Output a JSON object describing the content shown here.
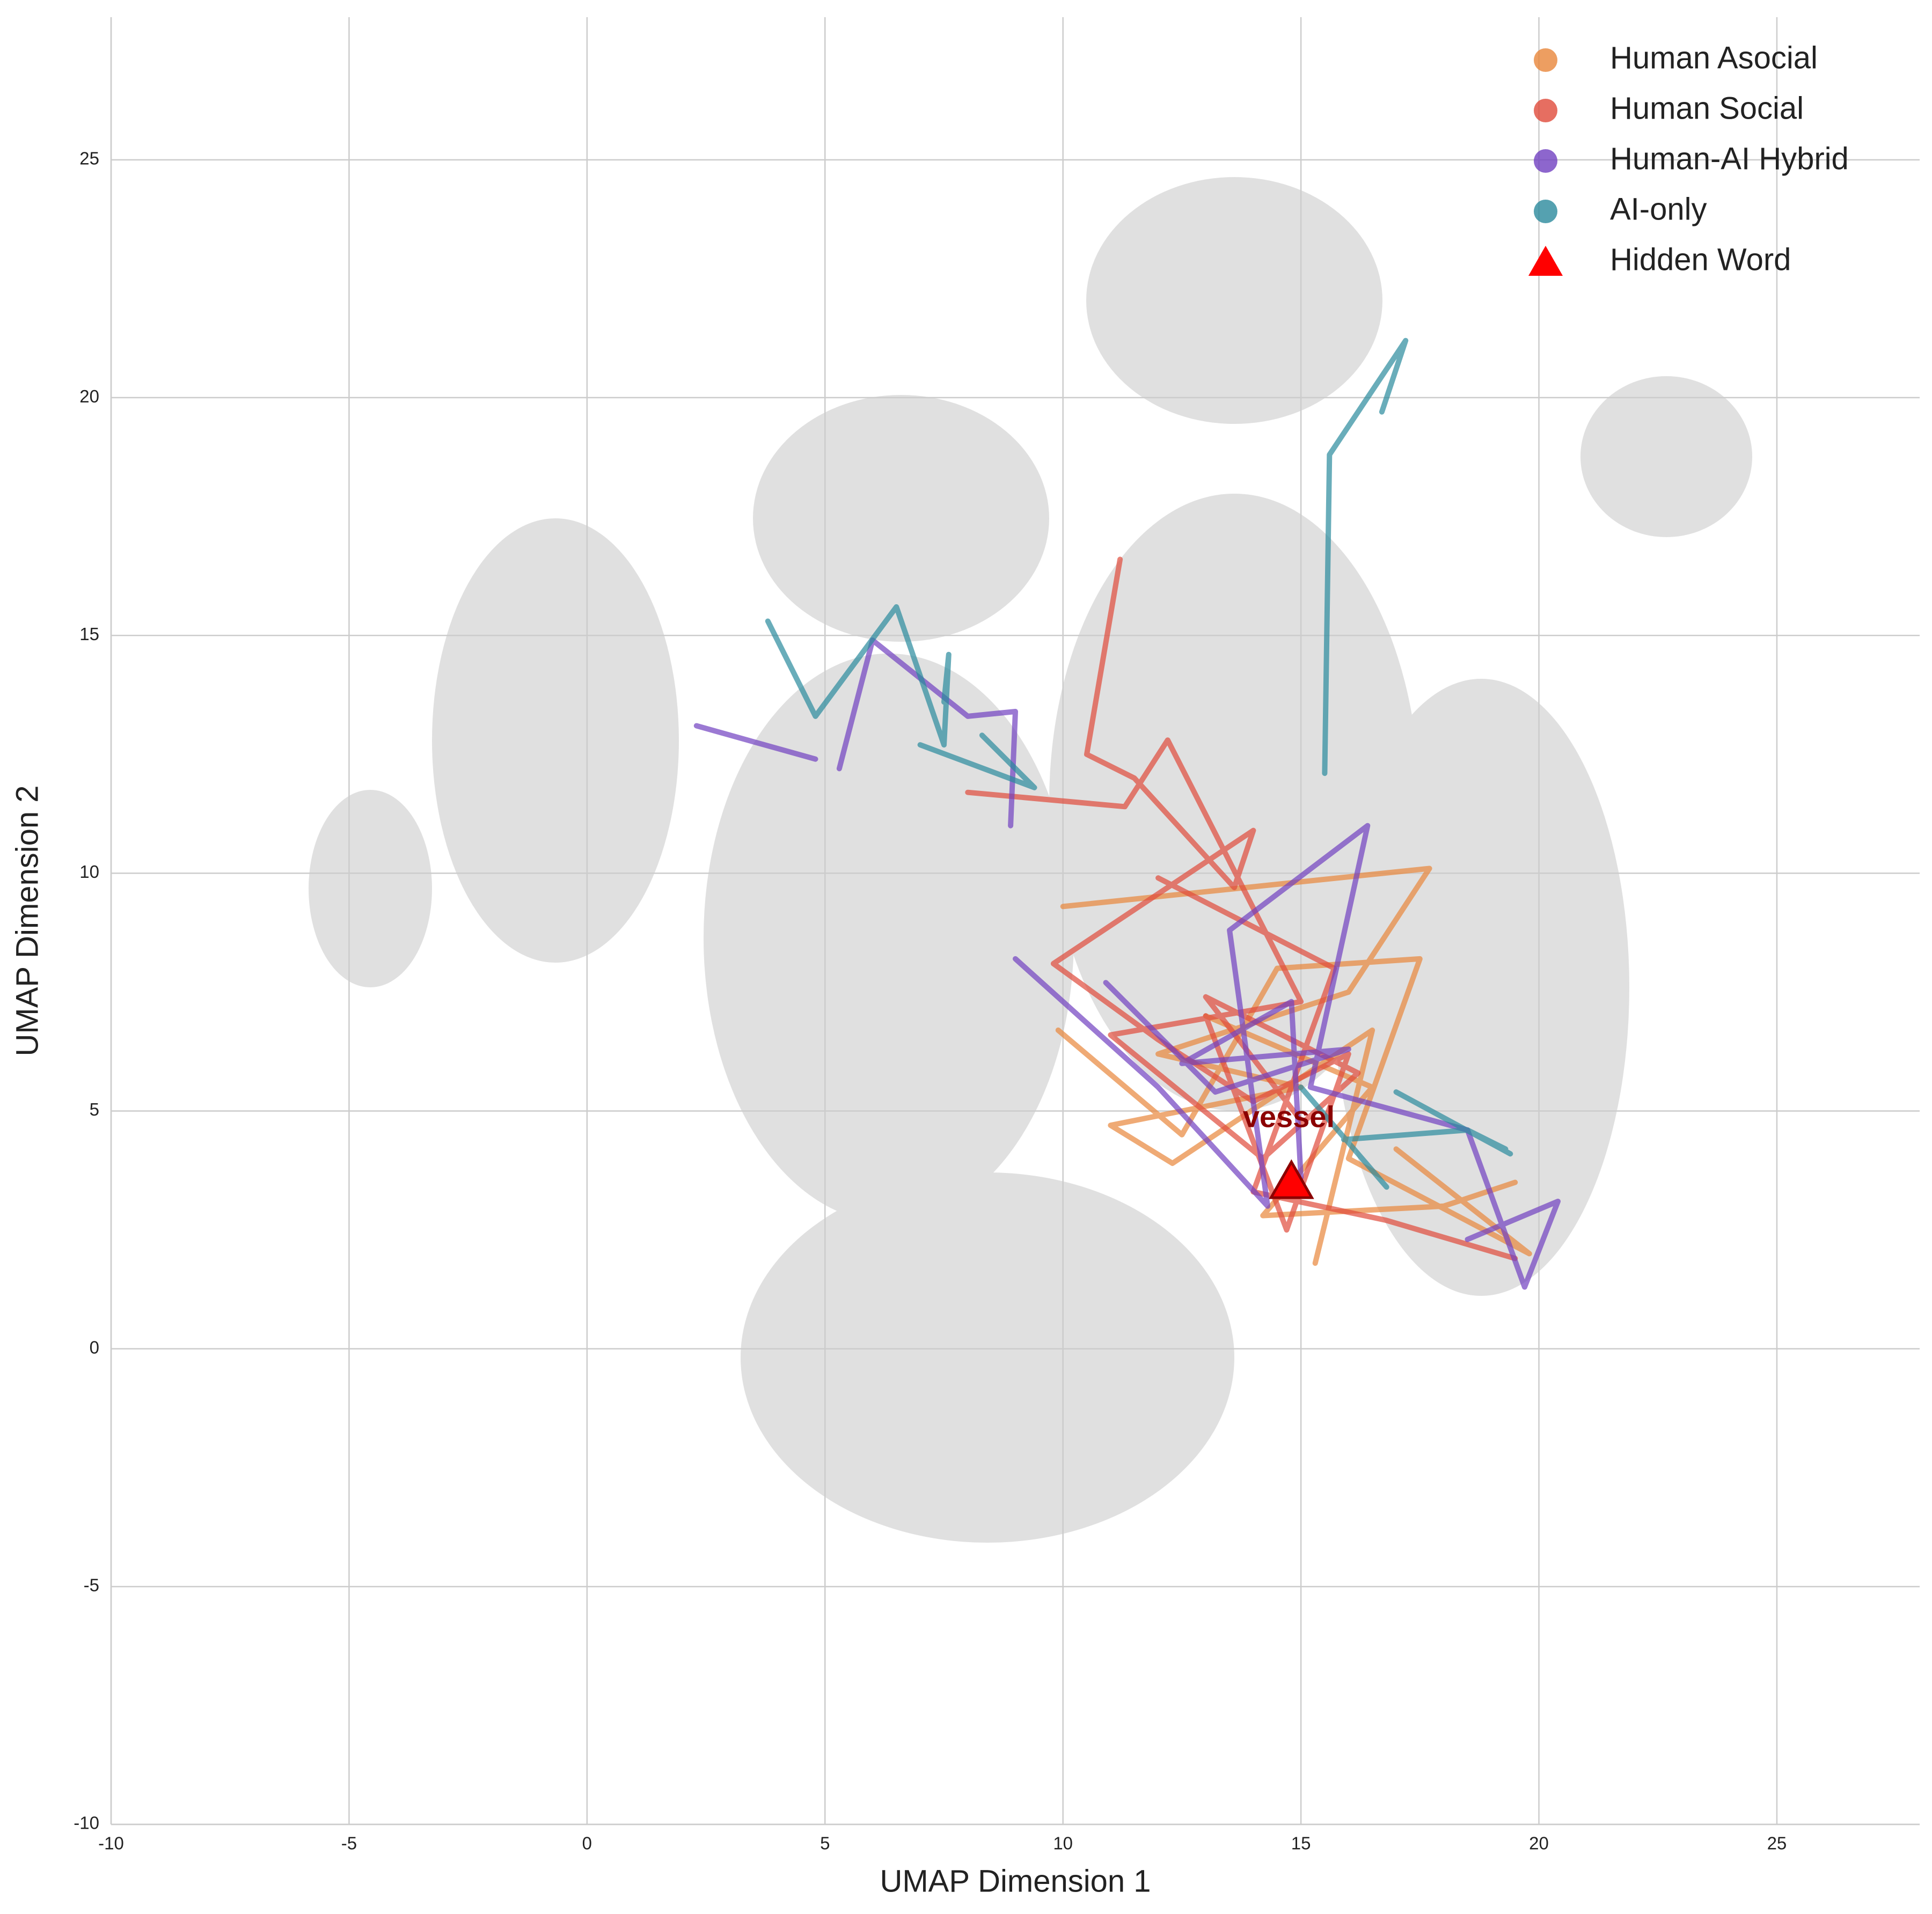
{
  "chart_data": {
    "type": "line",
    "x_label": "UMAP Dimension 1",
    "y_label": "UMAP Dimension 2",
    "xlim": [
      -10,
      28
    ],
    "ylim": [
      -10,
      28
    ],
    "xticks": [
      -10,
      -5,
      0,
      5,
      10,
      15,
      20,
      25
    ],
    "yticks": [
      -10,
      -5,
      0,
      5,
      10,
      15,
      20,
      25
    ],
    "grid": true,
    "legend": "upper right",
    "series": [
      {
        "name": "Human Asocial",
        "color": "#e8863a",
        "x": [
          10.0,
          17.7,
          16.0,
          12.0,
          15.0,
          11.0,
          12.3,
          16.5,
          15.3,
          null,
          9.9,
          12.5,
          14.5,
          17.5,
          16.0,
          19.8,
          17.0,
          null,
          13.0,
          16.5,
          14.2,
          18.0,
          19.5
        ],
        "y": [
          9.3,
          10.1,
          7.5,
          6.2,
          5.5,
          4.7,
          3.9,
          6.7,
          1.8,
          null,
          6.7,
          4.5,
          8.0,
          8.2,
          4.0,
          2.0,
          4.2,
          null,
          7.0,
          5.5,
          2.8,
          3.0,
          3.5
        ]
      },
      {
        "name": "Human Social",
        "color": "#e04a3a",
        "x": [
          11.2,
          10.5,
          11.5,
          13.6,
          14.0,
          9.8,
          12.0,
          14.0,
          16.0,
          14.7,
          13.0,
          null,
          8.0,
          11.3,
          12.2,
          15.0,
          11.0,
          14.2,
          16.2,
          13.0,
          15.0,
          null,
          12.0,
          15.7,
          14.0,
          16.8,
          19.5
        ],
        "y": [
          16.6,
          12.5,
          12.0,
          9.7,
          10.9,
          8.1,
          6.5,
          5.2,
          6.2,
          2.5,
          7.0,
          null,
          11.7,
          11.4,
          12.8,
          7.3,
          6.6,
          4.0,
          5.8,
          7.4,
          4.8,
          null,
          9.9,
          8.0,
          3.3,
          2.7,
          1.9
        ]
      },
      {
        "name": "Human-AI Hybrid",
        "color": "#7040c0",
        "x": [
          2.3,
          4.8,
          null,
          5.3,
          6.0,
          8.0,
          9.0,
          8.9,
          null,
          9.0,
          12.0,
          14.3,
          13.5,
          16.4,
          15.2,
          18.5,
          19.7,
          20.4,
          18.5,
          null,
          10.9,
          13.2,
          16.0,
          12.5,
          14.8,
          15.0
        ],
        "y": [
          13.1,
          12.4,
          null,
          12.2,
          14.9,
          13.3,
          13.4,
          11.0,
          null,
          8.2,
          5.5,
          3.0,
          8.8,
          11.0,
          5.5,
          4.6,
          1.3,
          3.1,
          2.3,
          null,
          7.7,
          5.4,
          6.3,
          6.0,
          7.3,
          3.6
        ]
      },
      {
        "name": "AI-only",
        "color": "#2a8a9c",
        "x": [
          3.8,
          4.8,
          6.5,
          7.5,
          7.6,
          7.5,
          null,
          7.0,
          9.4,
          8.3,
          null,
          15.5,
          15.6,
          17.2,
          16.7,
          null,
          17.0,
          19.4,
          null,
          15.0,
          16.8,
          null,
          15.9,
          18.5,
          19.3
        ],
        "y": [
          15.3,
          13.3,
          15.6,
          12.7,
          14.6,
          13.6,
          null,
          12.7,
          11.8,
          12.9,
          null,
          12.1,
          18.8,
          21.2,
          19.7,
          null,
          5.4,
          4.1,
          null,
          5.5,
          3.4,
          null,
          4.4,
          4.6,
          4.2
        ]
      }
    ],
    "hidden_word": {
      "name": "Hidden Word",
      "label": "vessel",
      "x": 14.8,
      "y": 3.5,
      "color": "#ff0000"
    }
  }
}
